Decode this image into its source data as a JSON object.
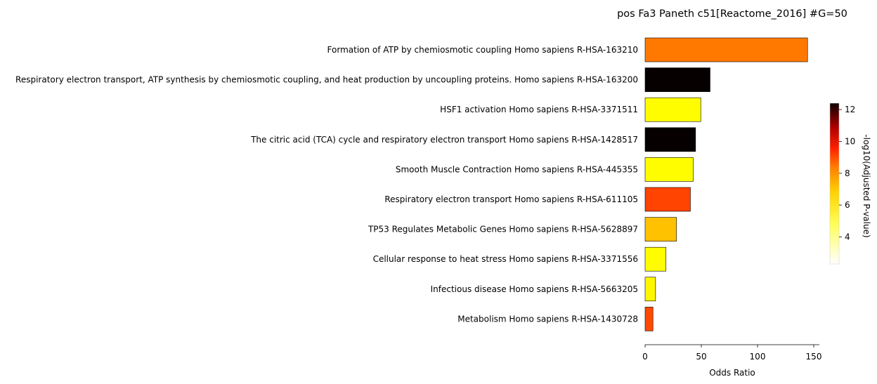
{
  "chart_data": {
    "type": "bar",
    "orientation": "horizontal",
    "title": "pos Fa3 Paneth c51[Reactome_2016] #G=50",
    "xlabel": "Odds Ratio",
    "ylabel": "",
    "xlim": [
      0,
      155
    ],
    "xticks": [
      0,
      50,
      100,
      150
    ],
    "categories": [
      "Formation of ATP by chemiosmotic coupling Homo sapiens R-HSA-163210",
      "Respiratory electron transport, ATP synthesis by chemiosmotic coupling, and heat production by uncoupling proteins. Homo sapiens R-HSA-163200",
      "HSF1 activation Homo sapiens R-HSA-3371511",
      "The citric acid (TCA) cycle and respiratory electron transport Homo sapiens R-HSA-1428517",
      "Smooth Muscle Contraction Homo sapiens R-HSA-445355",
      "Respiratory electron transport Homo sapiens R-HSA-611105",
      "TP53 Regulates Metabolic Genes Homo sapiens R-HSA-5628897",
      "Cellular response to heat stress Homo sapiens R-HSA-3371556",
      "Infectious disease Homo sapiens R-HSA-5663205",
      "Metabolism Homo sapiens R-HSA-1430728"
    ],
    "values": [
      144.5,
      57.8,
      49.5,
      44.9,
      42.8,
      40.3,
      27.9,
      18.6,
      9.3,
      7.0
    ],
    "color_values": [
      6.9,
      12.3,
      4.9,
      12.3,
      4.9,
      7.7,
      5.8,
      4.9,
      5.0,
      7.6
    ],
    "colorbar": {
      "label": "-log10(Adjusted P-value)",
      "colormap": "hot_r",
      "range": [
        2.3,
        12.4
      ],
      "ticks": [
        4,
        6,
        8,
        10,
        12
      ]
    },
    "bar_edge_color": "#000000",
    "grid": false
  }
}
